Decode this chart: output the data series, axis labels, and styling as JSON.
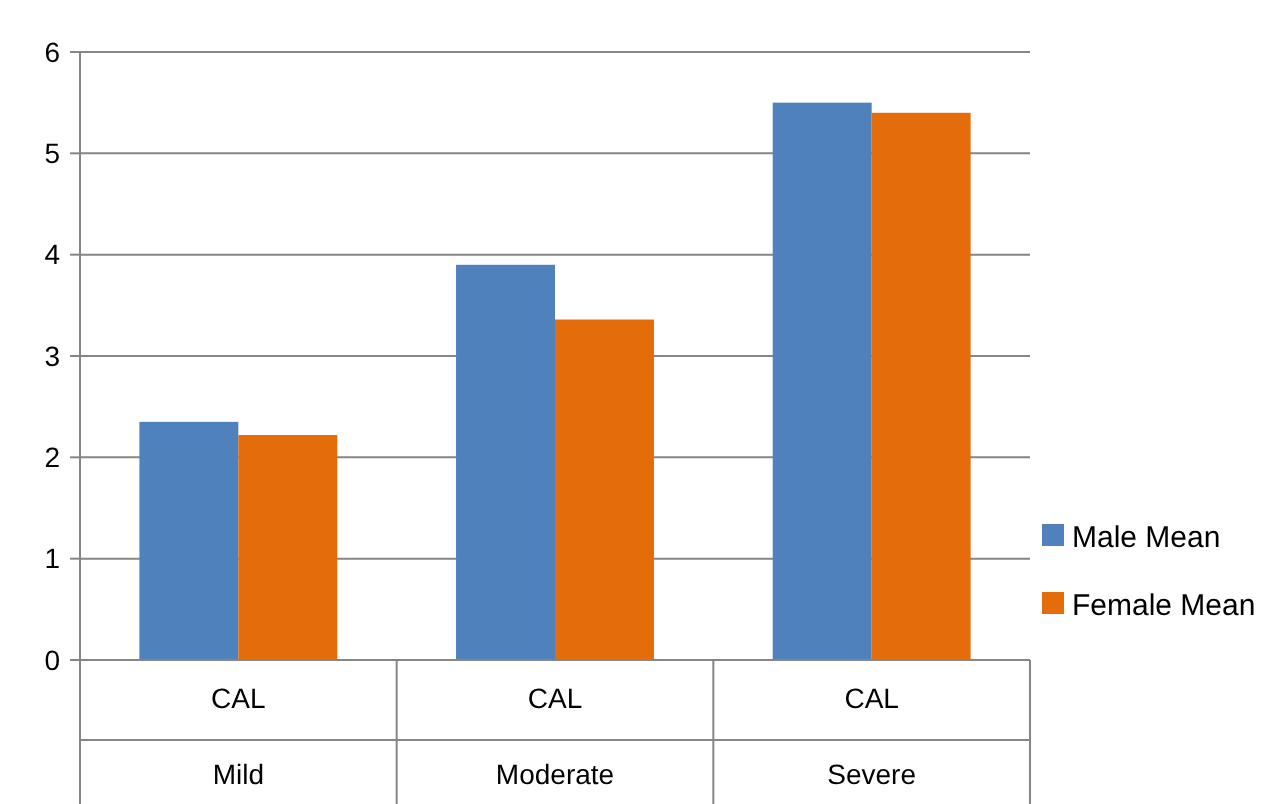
{
  "chart_data": {
    "type": "bar",
    "categories": [
      "CAL\nMild",
      "CAL\nModerate",
      "CAL\nSevere"
    ],
    "series": [
      {
        "name": "Male Mean",
        "color": "#4f81bd",
        "values": [
          2.35,
          3.9,
          5.5
        ]
      },
      {
        "name": "Female Mean",
        "color": "#e46c0a",
        "values": [
          2.22,
          3.36,
          5.4
        ]
      }
    ],
    "ylim": [
      0,
      6
    ],
    "yticks": [
      0,
      1,
      2,
      3,
      4,
      5,
      6
    ],
    "grid": "y",
    "legend": "right"
  }
}
